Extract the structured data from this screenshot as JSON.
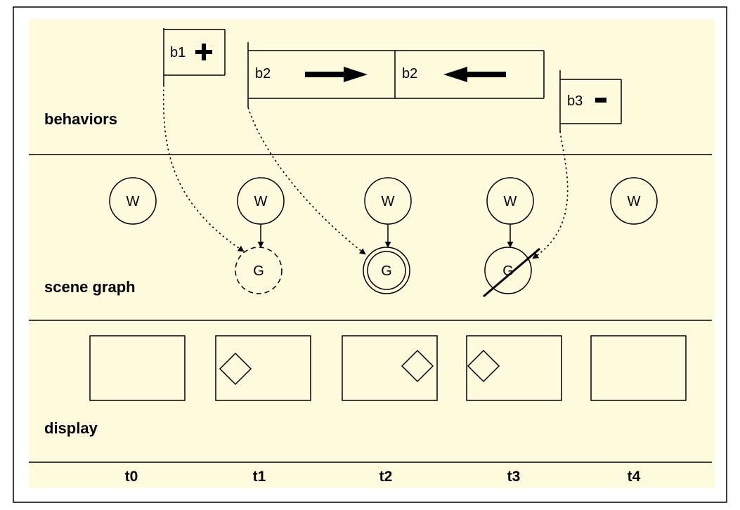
{
  "rows": {
    "behaviors": "behaviors",
    "scene_graph": "scene graph",
    "display": "display"
  },
  "behaviors": {
    "b1": {
      "label": "b1",
      "sign": "plus"
    },
    "b2_right": {
      "label": "b2",
      "arrow": "right"
    },
    "b2_left": {
      "label": "b2",
      "arrow": "left"
    },
    "b3": {
      "label": "b3",
      "sign": "minus"
    }
  },
  "scene": {
    "w_label": "W",
    "g_label": "G",
    "g_states": [
      "dashed",
      "double",
      "crossed"
    ]
  },
  "times": [
    "t0",
    "t1",
    "t2",
    "t3",
    "t4"
  ],
  "colors": {
    "background": "#fefbdf",
    "stroke": "#000000"
  }
}
